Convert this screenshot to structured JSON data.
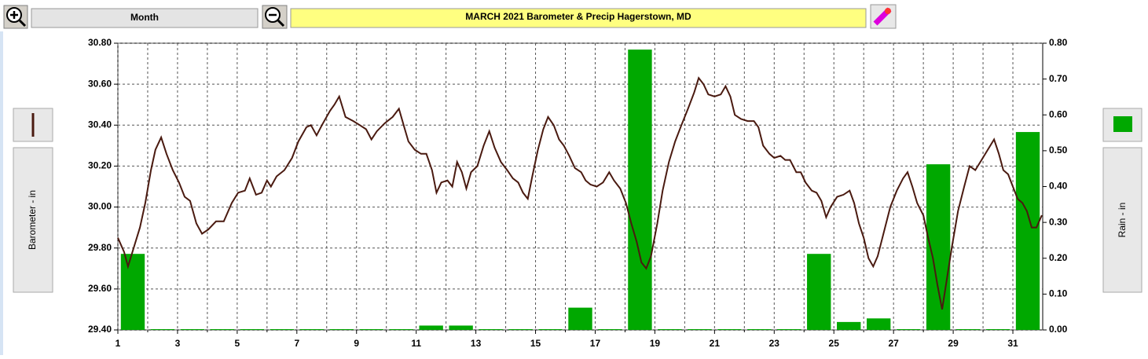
{
  "toolbar": {
    "period": "Month"
  },
  "chart_data": {
    "type": "combo",
    "title": "MARCH  2021   Barometer & Precip    Hagerstown, MD",
    "xlim": [
      1,
      32
    ],
    "xticks": [
      1,
      3,
      5,
      7,
      9,
      11,
      13,
      15,
      17,
      19,
      21,
      23,
      25,
      27,
      29,
      31
    ],
    "xgrid_minor": [
      2,
      4,
      6,
      8,
      10,
      12,
      14,
      16,
      18,
      20,
      22,
      24,
      26,
      28,
      30
    ],
    "ylim": [
      29.4,
      30.8
    ],
    "yticks": [
      {
        "value": 29.4,
        "label": "29.40"
      },
      {
        "value": 29.6,
        "label": "29.60"
      },
      {
        "value": 29.8,
        "label": "29.80"
      },
      {
        "value": 30.0,
        "label": "30.00"
      },
      {
        "value": 30.2,
        "label": "30.20"
      },
      {
        "value": 30.4,
        "label": "30.40"
      },
      {
        "value": 30.6,
        "label": "30.60"
      },
      {
        "value": 30.8,
        "label": "30.80"
      }
    ],
    "y2lim": [
      0,
      0.8
    ],
    "y2ticks": [
      {
        "value": 0,
        "label": "0.00"
      },
      {
        "value": 0.1,
        "label": "0.10"
      },
      {
        "value": 0.2,
        "label": "0.20"
      },
      {
        "value": 0.3,
        "label": "0.30"
      },
      {
        "value": 0.4,
        "label": "0.40"
      },
      {
        "value": 0.5,
        "label": "0.50"
      },
      {
        "value": 0.6,
        "label": "0.60"
      },
      {
        "value": 0.7,
        "label": "0.70"
      },
      {
        "value": 0.8,
        "label": "0.80"
      }
    ],
    "grid": true,
    "series": [
      {
        "name": "Barometer - in",
        "type": "line",
        "color": "#4a1a10",
        "x": [
          1.0,
          1.21,
          1.34,
          1.53,
          1.74,
          1.92,
          2.11,
          2.26,
          2.45,
          2.63,
          2.84,
          3.05,
          3.24,
          3.42,
          3.63,
          3.82,
          4.03,
          4.29,
          4.55,
          4.82,
          5.03,
          5.26,
          5.42,
          5.63,
          5.82,
          6.0,
          6.13,
          6.32,
          6.58,
          6.84,
          7.05,
          7.32,
          7.47,
          7.66,
          7.84,
          8.11,
          8.26,
          8.42,
          8.63,
          8.89,
          9.11,
          9.32,
          9.5,
          9.68,
          9.95,
          10.21,
          10.42,
          10.58,
          10.74,
          10.95,
          11.16,
          11.34,
          11.53,
          11.68,
          11.84,
          12.05,
          12.21,
          12.37,
          12.53,
          12.68,
          12.84,
          13.05,
          13.26,
          13.45,
          13.63,
          13.84,
          14.05,
          14.24,
          14.42,
          14.58,
          14.74,
          14.89,
          15.08,
          15.26,
          15.42,
          15.61,
          15.79,
          15.95,
          16.13,
          16.32,
          16.53,
          16.68,
          16.84,
          17.05,
          17.26,
          17.47,
          17.63,
          17.84,
          18.03,
          18.21,
          18.39,
          18.55,
          18.71,
          18.87,
          19.08,
          19.26,
          19.47,
          19.68,
          19.89,
          20.11,
          20.32,
          20.47,
          20.63,
          20.79,
          21.0,
          21.21,
          21.37,
          21.53,
          21.68,
          21.89,
          22.11,
          22.32,
          22.47,
          22.63,
          22.84,
          23.0,
          23.21,
          23.37,
          23.53,
          23.74,
          23.89,
          24.05,
          24.26,
          24.42,
          24.58,
          24.74,
          24.89,
          25.11,
          25.32,
          25.53,
          25.68,
          25.84,
          26.0,
          26.16,
          26.32,
          26.47,
          26.68,
          26.89,
          27.11,
          27.32,
          27.47,
          27.63,
          27.79,
          28.0,
          28.16,
          28.32,
          28.47,
          28.63,
          28.79,
          28.95,
          29.16,
          29.37,
          29.55,
          29.74,
          29.95,
          30.16,
          30.37,
          30.53,
          30.68,
          30.84,
          31.0,
          31.16,
          31.32,
          31.47,
          31.63,
          31.79,
          31.97
        ],
        "values": [
          29.85,
          29.78,
          29.71,
          29.8,
          29.9,
          30.02,
          30.18,
          30.28,
          30.34,
          30.26,
          30.18,
          30.12,
          30.05,
          30.03,
          29.92,
          29.87,
          29.89,
          29.93,
          29.93,
          30.02,
          30.07,
          30.08,
          30.14,
          30.06,
          30.07,
          30.13,
          30.1,
          30.15,
          30.18,
          30.24,
          30.32,
          30.39,
          30.4,
          30.35,
          30.4,
          30.47,
          30.5,
          30.54,
          30.44,
          30.42,
          30.4,
          30.38,
          30.33,
          30.37,
          30.41,
          30.44,
          30.48,
          30.4,
          30.32,
          30.28,
          30.26,
          30.26,
          30.18,
          30.07,
          30.12,
          30.13,
          30.1,
          30.22,
          30.17,
          30.09,
          30.17,
          30.2,
          30.3,
          30.37,
          30.29,
          30.22,
          30.18,
          30.14,
          30.12,
          30.07,
          30.04,
          30.15,
          30.28,
          30.38,
          30.44,
          30.4,
          30.33,
          30.3,
          30.25,
          30.19,
          30.17,
          30.13,
          30.11,
          30.1,
          30.12,
          30.17,
          30.13,
          30.09,
          30.02,
          29.92,
          29.83,
          29.73,
          29.7,
          29.76,
          29.92,
          30.08,
          30.22,
          30.32,
          30.4,
          30.48,
          30.56,
          30.63,
          30.6,
          30.55,
          30.54,
          30.55,
          30.59,
          30.54,
          30.45,
          30.43,
          30.42,
          30.42,
          30.39,
          30.3,
          30.26,
          30.24,
          30.25,
          30.23,
          30.23,
          30.17,
          30.17,
          30.12,
          30.08,
          30.07,
          30.03,
          29.95,
          30.0,
          30.05,
          30.06,
          30.08,
          30.02,
          29.92,
          29.85,
          29.75,
          29.71,
          29.76,
          29.88,
          30.0,
          30.08,
          30.14,
          30.17,
          30.1,
          30.02,
          29.96,
          29.85,
          29.75,
          29.62,
          29.5,
          29.65,
          29.8,
          29.98,
          30.1,
          30.2,
          30.18,
          30.23,
          30.28,
          30.33,
          30.26,
          30.18,
          30.16,
          30.1,
          30.04,
          30.02,
          29.98,
          29.9,
          29.9,
          29.96
        ]
      },
      {
        "name": "Rain - in",
        "type": "bar",
        "axis": "y2",
        "color": "#00a800",
        "x": [
          1,
          2,
          3,
          4,
          5,
          6,
          7,
          8,
          9,
          10,
          11,
          12,
          13,
          14,
          15,
          16,
          17,
          18,
          19,
          20,
          21,
          22,
          23,
          24,
          25,
          26,
          27,
          28,
          29,
          30,
          31
        ],
        "values": [
          0.21,
          0,
          0,
          0,
          0,
          0,
          0,
          0,
          0,
          0,
          0.01,
          0.01,
          0,
          0,
          0,
          0.06,
          0,
          0.78,
          0,
          0,
          0,
          0,
          0,
          0.21,
          0.02,
          0.03,
          0,
          0.46,
          0,
          0,
          0.55
        ]
      }
    ]
  }
}
